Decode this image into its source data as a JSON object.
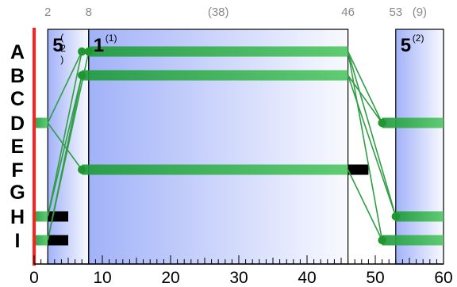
{
  "chart_data": {
    "type": "timeline",
    "x_range": [
      0,
      60
    ],
    "axis_ticks": [
      "0",
      "10",
      "20",
      "30",
      "40",
      "50",
      "60"
    ],
    "rows": [
      "A",
      "B",
      "C",
      "D",
      "E",
      "F",
      "G",
      "H",
      "I"
    ],
    "top_labels": [
      {
        "x": 2,
        "text": "2"
      },
      {
        "x": 8,
        "text": "8"
      },
      {
        "x": 27,
        "text": "(38)"
      },
      {
        "x": 46,
        "text": "46"
      },
      {
        "x": 53,
        "text": "53"
      },
      {
        "x": 56.5,
        "text": "(9)"
      }
    ],
    "stages": [
      {
        "start": 2,
        "end": 8,
        "count": "5",
        "sub": [
          "(",
          "2",
          ")"
        ],
        "vertical_sub": true
      },
      {
        "start": 8,
        "end": 46,
        "count": "1",
        "sub": [
          "(1)"
        ],
        "vertical_sub": false
      },
      {
        "start": 53,
        "end": 60,
        "count": "5",
        "sub": [
          "(2)"
        ],
        "vertical_sub": false
      }
    ],
    "bars": [
      {
        "row": "D",
        "start": 0,
        "end": 2,
        "color": "#3cb554"
      },
      {
        "row": "H",
        "start": 0,
        "end": 2,
        "color": "#3cb554"
      },
      {
        "row": "I",
        "start": 0,
        "end": 2,
        "color": "#3cb554"
      },
      {
        "row": "H",
        "start": 2,
        "end": 5,
        "color": "#000000"
      },
      {
        "row": "I",
        "start": 2,
        "end": 5,
        "color": "#000000"
      },
      {
        "row": "A",
        "start": 8,
        "end": 46,
        "color": "#3cb554"
      },
      {
        "row": "B",
        "start": 7,
        "end": 46,
        "color": "#3cb554"
      },
      {
        "row": "F",
        "start": 7,
        "end": 46,
        "color": "#3cb554"
      },
      {
        "row": "F",
        "start": 46,
        "end": 49,
        "color": "#000000"
      },
      {
        "row": "D",
        "start": 51,
        "end": 60,
        "color": "#3cb554"
      },
      {
        "row": "H",
        "start": 53,
        "end": 60,
        "color": "#3cb554"
      },
      {
        "row": "I",
        "start": 51,
        "end": 60,
        "color": "#3cb554"
      }
    ],
    "nodes": [
      {
        "row": "A",
        "x": 7
      },
      {
        "row": "A",
        "x": 8
      },
      {
        "row": "B",
        "x": 7
      },
      {
        "row": "F",
        "x": 7
      },
      {
        "row": "D",
        "x": 51
      },
      {
        "row": "H",
        "x": 53
      },
      {
        "row": "I",
        "x": 51
      }
    ],
    "links": [
      {
        "from": {
          "row": "D",
          "x": 2
        },
        "to": {
          "row": "A",
          "x": 7
        }
      },
      {
        "from": {
          "row": "D",
          "x": 2
        },
        "to": {
          "row": "F",
          "x": 7
        }
      },
      {
        "from": {
          "row": "H",
          "x": 2
        },
        "to": {
          "row": "A",
          "x": 7
        }
      },
      {
        "from": {
          "row": "H",
          "x": 2
        },
        "to": {
          "row": "B",
          "x": 7
        }
      },
      {
        "from": {
          "row": "I",
          "x": 2
        },
        "to": {
          "row": "A",
          "x": 8
        }
      },
      {
        "from": {
          "row": "I",
          "x": 2
        },
        "to": {
          "row": "B",
          "x": 7
        }
      },
      {
        "from": {
          "row": "A",
          "x": 46
        },
        "to": {
          "row": "D",
          "x": 51
        }
      },
      {
        "from": {
          "row": "A",
          "x": 46
        },
        "to": {
          "row": "H",
          "x": 53
        }
      },
      {
        "from": {
          "row": "A",
          "x": 46
        },
        "to": {
          "row": "I",
          "x": 51
        }
      },
      {
        "from": {
          "row": "B",
          "x": 46
        },
        "to": {
          "row": "D",
          "x": 51
        }
      },
      {
        "from": {
          "row": "B",
          "x": 46
        },
        "to": {
          "row": "H",
          "x": 53
        }
      },
      {
        "from": {
          "row": "F",
          "x": 46
        },
        "to": {
          "row": "I",
          "x": 51
        }
      }
    ],
    "colors": {
      "green": "#3cb554",
      "red_marker": "#ff2020",
      "stage_blue": "#2f53f0"
    }
  }
}
